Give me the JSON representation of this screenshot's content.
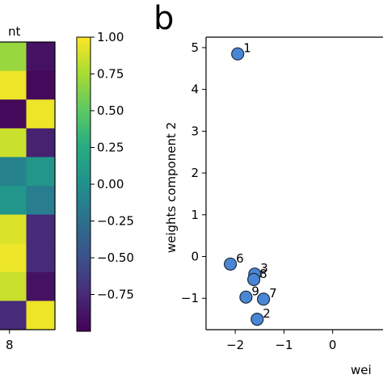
{
  "panel_b_letter": "b",
  "chart_data": [
    {
      "type": "heatmap",
      "title_fragment": "nt",
      "x_tick_labels": [
        "8"
      ],
      "colormap": "viridis",
      "colorbar": {
        "vmin": -1.0,
        "vmax": 1.0,
        "tick_values": [
          1.0,
          0.75,
          0.5,
          0.25,
          0.0,
          -0.25,
          -0.5,
          -0.75
        ],
        "tick_labels": [
          "1.00",
          "0.75",
          "0.50",
          "0.25",
          "0.00",
          "−0.25",
          "−0.50",
          "−0.75"
        ]
      },
      "rows": 10,
      "columns_visible": 2,
      "values": [
        [
          0.7,
          -0.9
        ],
        [
          0.95,
          -0.95
        ],
        [
          -0.95,
          0.95
        ],
        [
          0.85,
          -0.8
        ],
        [
          -0.1,
          0.05
        ],
        [
          0.05,
          -0.15
        ],
        [
          0.9,
          -0.75
        ],
        [
          0.95,
          -0.75
        ],
        [
          0.85,
          -0.9
        ],
        [
          -0.75,
          0.95
        ]
      ]
    },
    {
      "type": "scatter",
      "xlabel": "wei",
      "ylabel": "weights component 2",
      "xlim": [
        -2.6,
        1.3
      ],
      "ylim": [
        -1.75,
        5.25
      ],
      "x_ticks": [
        -2,
        -1,
        0
      ],
      "x_tick_labels": [
        "−2",
        "−1",
        "0"
      ],
      "y_ticks": [
        5,
        4,
        3,
        2,
        1,
        0,
        -1
      ],
      "y_tick_labels": [
        "5",
        "4",
        "3",
        "2",
        "1",
        "0",
        "−1"
      ],
      "marker_color": "#4a86d6",
      "marker_edge": "#1d2b3a",
      "points": [
        {
          "label": "1",
          "x": -1.95,
          "y": 4.85
        },
        {
          "label": "6",
          "x": -2.1,
          "y": -0.18
        },
        {
          "label": "3",
          "x": -1.6,
          "y": -0.42
        },
        {
          "label": "8",
          "x": -1.62,
          "y": -0.55
        },
        {
          "label": "9",
          "x": -1.78,
          "y": -0.97
        },
        {
          "label": "7",
          "x": -1.42,
          "y": -1.02
        },
        {
          "label": "2",
          "x": -1.55,
          "y": -1.5
        }
      ]
    }
  ]
}
